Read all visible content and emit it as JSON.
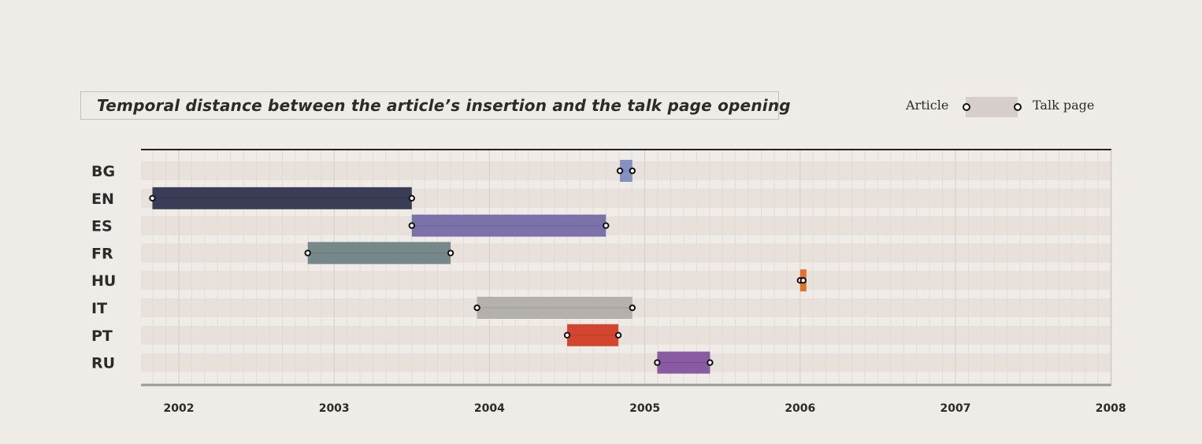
{
  "title": "Temporal distance between the article’s insertion and the talk page opening",
  "legend": {
    "article_label": "Article",
    "talk_label": "Talk page"
  },
  "colors": {
    "background": "#efebe7",
    "row_band": "#e7e0db",
    "legend_bar": "#d6ceca",
    "axis": "#222222",
    "bottom_axis": "#9a9a9a",
    "grid_major": "#d4ceca",
    "grid_minor": "#e2dcd8"
  },
  "chart_data": {
    "type": "range-bar",
    "title": "Temporal distance between the article’s insertion and the talk page opening",
    "x_ticks": [
      "2002",
      "2003",
      "2004",
      "2005",
      "2006",
      "2007",
      "2008"
    ],
    "xlim": [
      2001.75,
      2008.0
    ],
    "grid": true,
    "legend_position": "top-right",
    "series": [
      {
        "label": "BG",
        "article": 2004.84,
        "talk": 2004.92,
        "color": "#8591c3"
      },
      {
        "label": "EN",
        "article": 2001.83,
        "talk": 2003.5,
        "color": "#3a3d55"
      },
      {
        "label": "ES",
        "article": 2003.5,
        "talk": 2004.75,
        "color": "#7b72aa"
      },
      {
        "label": "FR",
        "article": 2002.83,
        "talk": 2003.75,
        "color": "#76888a"
      },
      {
        "label": "HU",
        "article": 2006.0,
        "talk": 2006.02,
        "color": "#e0732e"
      },
      {
        "label": "IT",
        "article": 2003.92,
        "talk": 2004.92,
        "color": "#b4b0ab"
      },
      {
        "label": "PT",
        "article": 2004.5,
        "talk": 2004.83,
        "color": "#d2452f"
      },
      {
        "label": "RU",
        "article": 2005.08,
        "talk": 2005.42,
        "color": "#8a5ba0"
      }
    ]
  }
}
